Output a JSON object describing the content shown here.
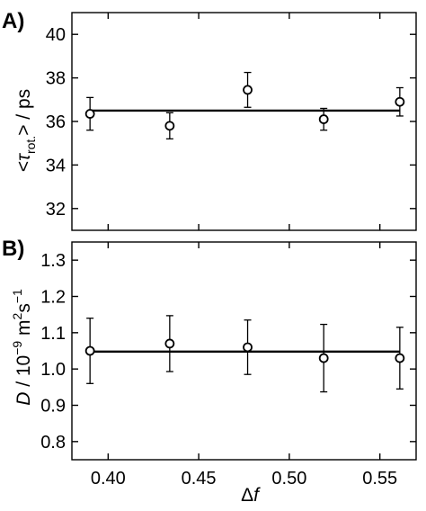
{
  "chart_data": [
    {
      "type": "scatter",
      "panel_label": "A)",
      "ylabel_parts": [
        "<",
        "τ",
        "rot.",
        "> / ps"
      ],
      "xlim": [
        0.38,
        0.57
      ],
      "ylim": [
        31,
        41
      ],
      "yticks": [
        32,
        34,
        36,
        38,
        40
      ],
      "ytick_labels": [
        "32",
        "34",
        "36",
        "38",
        "40"
      ],
      "xticks": [
        0.4,
        0.45,
        0.5,
        0.55
      ],
      "grid": false,
      "points": [
        {
          "x": 0.39,
          "y": 36.35,
          "err": 0.75
        },
        {
          "x": 0.434,
          "y": 35.8,
          "err": 0.6
        },
        {
          "x": 0.477,
          "y": 37.45,
          "err": 0.8
        },
        {
          "x": 0.519,
          "y": 36.1,
          "err": 0.5
        },
        {
          "x": 0.561,
          "y": 36.9,
          "err": 0.65
        }
      ],
      "fit_line": {
        "x": [
          0.39,
          0.561
        ],
        "y": [
          36.5,
          36.5
        ]
      }
    },
    {
      "type": "scatter",
      "panel_label": "B)",
      "ylabel_parts": [
        "D",
        " / 10",
        "−9",
        " m",
        "2",
        "s",
        "−1"
      ],
      "xlabel_parts": [
        "Δ",
        "f"
      ],
      "xlim": [
        0.38,
        0.57
      ],
      "ylim": [
        0.75,
        1.35
      ],
      "yticks": [
        0.8,
        0.9,
        1.0,
        1.1,
        1.2,
        1.3
      ],
      "ytick_labels": [
        "0.8",
        "0.9",
        "1.0",
        "1.1",
        "1.2",
        "1.3"
      ],
      "xticks": [
        0.4,
        0.45,
        0.5,
        0.55
      ],
      "xtick_labels": [
        "0.40",
        "0.45",
        "0.50",
        "0.55"
      ],
      "grid": false,
      "points": [
        {
          "x": 0.39,
          "y": 1.05,
          "err": 0.09
        },
        {
          "x": 0.434,
          "y": 1.07,
          "err": 0.077
        },
        {
          "x": 0.477,
          "y": 1.06,
          "err": 0.075
        },
        {
          "x": 0.519,
          "y": 1.03,
          "err": 0.093
        },
        {
          "x": 0.561,
          "y": 1.03,
          "err": 0.085
        }
      ],
      "fit_line": {
        "x": [
          0.39,
          0.561
        ],
        "y": [
          1.048,
          1.048
        ]
      }
    }
  ]
}
